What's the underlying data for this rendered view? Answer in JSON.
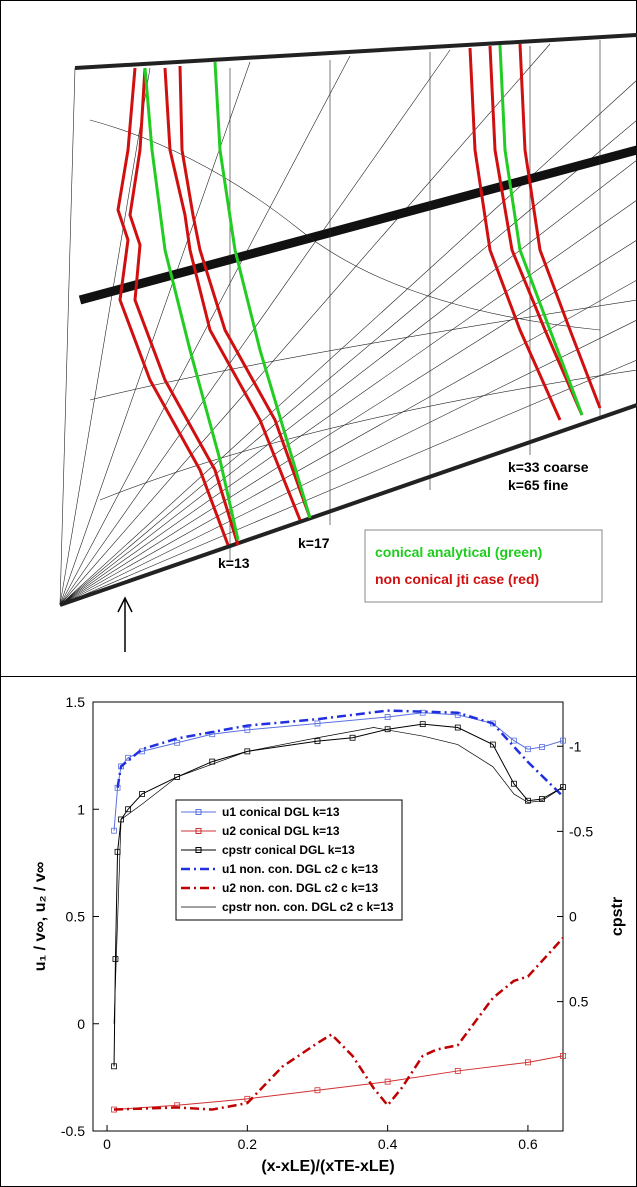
{
  "top_panel": {
    "labels": [
      "k=33 coarse",
      "k=65 fine",
      "k=13",
      "k=17"
    ],
    "legend": [
      {
        "text": "conical  analytical (green)",
        "color": "#1ecc1e"
      },
      {
        "text": "non conical jti  case (red)",
        "color": "#d01010"
      }
    ]
  },
  "chart_data": {
    "type": "line",
    "xlabel": "(x-xLE)/(xTE-xLE)",
    "ylabel": "u₁ / v∞, u₂ / v∞",
    "y2label": "cpstr",
    "xlim": [
      -0.02,
      0.65
    ],
    "xticks": [
      0,
      0.2,
      0.4,
      0.6
    ],
    "ylim": [
      -0.5,
      1.5
    ],
    "yticks": [
      -0.5,
      0,
      0.5,
      1,
      1.5
    ],
    "y2lim": [
      1.26,
      -1.26
    ],
    "y2ticks": [
      -1,
      -0.5,
      0,
      0.5
    ],
    "series": [
      {
        "name": "u1 conical DGL k=13",
        "color": "#5a70e0",
        "style": "solid",
        "marker": "square",
        "x": [
          0.01,
          0.015,
          0.02,
          0.03,
          0.05,
          0.1,
          0.15,
          0.2,
          0.3,
          0.4,
          0.45,
          0.5,
          0.55,
          0.58,
          0.6,
          0.62,
          0.65
        ],
        "values": [
          0.9,
          1.1,
          1.2,
          1.24,
          1.27,
          1.31,
          1.35,
          1.37,
          1.4,
          1.43,
          1.45,
          1.44,
          1.4,
          1.32,
          1.28,
          1.29,
          1.32
        ]
      },
      {
        "name": "u2 conical DGL k=13",
        "color": "#d03030",
        "style": "solid",
        "marker": "square",
        "x": [
          0.01,
          0.1,
          0.2,
          0.3,
          0.4,
          0.5,
          0.6,
          0.65
        ],
        "values": [
          -0.4,
          -0.38,
          -0.35,
          -0.31,
          -0.27,
          -0.22,
          -0.18,
          -0.15
        ]
      },
      {
        "name": "cpstr conical DGL k=13",
        "color": "#000000",
        "style": "solid",
        "marker": "square",
        "axis": "y2",
        "x": [
          0.01,
          0.012,
          0.015,
          0.02,
          0.03,
          0.05,
          0.1,
          0.15,
          0.2,
          0.3,
          0.35,
          0.4,
          0.45,
          0.5,
          0.55,
          0.58,
          0.6,
          0.62,
          0.65
        ],
        "values": [
          0.88,
          0.25,
          -0.38,
          -0.57,
          -0.63,
          -0.72,
          -0.82,
          -0.91,
          -0.97,
          -1.03,
          -1.05,
          -1.1,
          -1.13,
          -1.11,
          -1.01,
          -0.78,
          -0.68,
          -0.69,
          -0.76
        ]
      },
      {
        "name": "u1 non. con. DGL c2 c k=13",
        "color": "#2030e0",
        "style": "dashdot",
        "marker": "none",
        "x": [
          0.015,
          0.02,
          0.05,
          0.1,
          0.2,
          0.3,
          0.4,
          0.5,
          0.55,
          0.6,
          0.65
        ],
        "values": [
          1.1,
          1.2,
          1.28,
          1.33,
          1.39,
          1.42,
          1.46,
          1.45,
          1.4,
          1.22,
          1.06
        ]
      },
      {
        "name": "u2 non. con. DGL c2 c k=13",
        "color": "#c00000",
        "style": "dashdot",
        "marker": "none",
        "x": [
          0.01,
          0.1,
          0.15,
          0.2,
          0.25,
          0.3,
          0.32,
          0.35,
          0.38,
          0.4,
          0.42,
          0.45,
          0.47,
          0.5,
          0.55,
          0.58,
          0.6,
          0.65
        ],
        "values": [
          -0.4,
          -0.39,
          -0.4,
          -0.37,
          -0.2,
          -0.09,
          -0.05,
          -0.15,
          -0.3,
          -0.38,
          -0.3,
          -0.15,
          -0.12,
          -0.1,
          0.12,
          0.2,
          0.22,
          0.4
        ]
      },
      {
        "name": "cpstr non. con. DGL c2 c k=13",
        "color": "#000000",
        "style": "thin",
        "marker": "none",
        "axis": "y2",
        "x": [
          0.01,
          0.02,
          0.05,
          0.1,
          0.2,
          0.3,
          0.38,
          0.45,
          0.5,
          0.55,
          0.58,
          0.6,
          0.62,
          0.65
        ],
        "values": [
          0.63,
          -0.57,
          -0.66,
          -0.82,
          -0.97,
          -1.05,
          -1.11,
          -1.06,
          -1.01,
          -0.88,
          -0.72,
          -0.67,
          -0.68,
          -0.76
        ]
      }
    ]
  }
}
